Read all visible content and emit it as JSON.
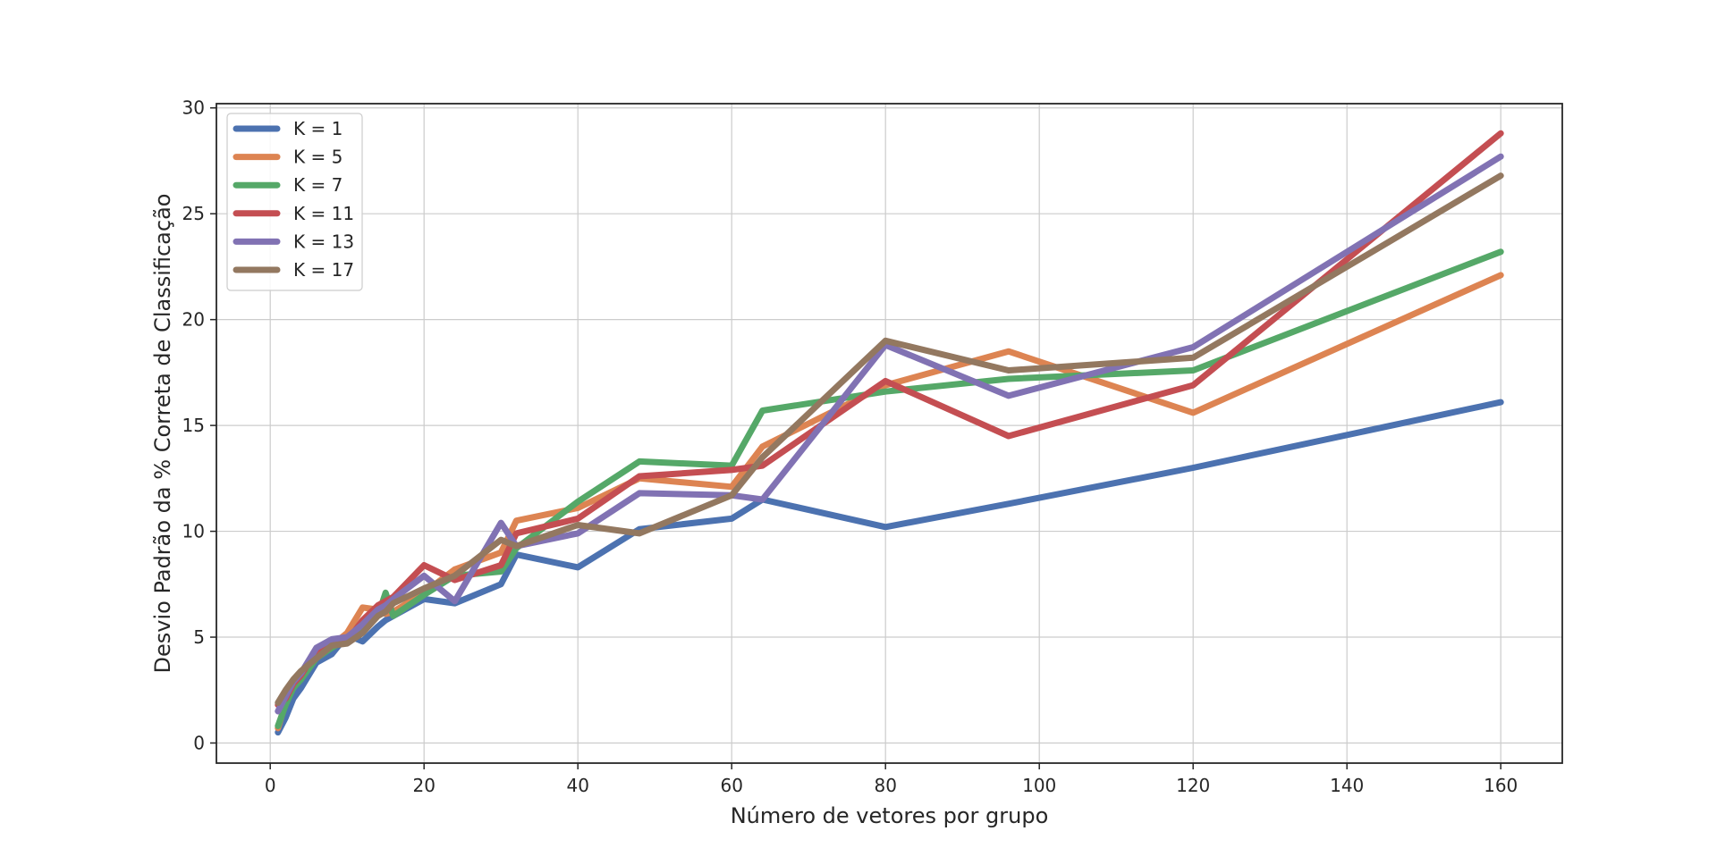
{
  "chart_data": {
    "type": "line",
    "title": "",
    "xlabel": "Número de vetores por grupo",
    "ylabel": "Desvio Padrão da % Correta de Classificação",
    "xlim": [
      -7,
      168
    ],
    "ylim": [
      -0.95,
      30.2
    ],
    "xticks": [
      0,
      20,
      40,
      60,
      80,
      100,
      120,
      140,
      160
    ],
    "yticks": [
      0,
      5,
      10,
      15,
      20,
      25,
      30
    ],
    "grid": true,
    "legend_position": "upper-left",
    "x": [
      1,
      2,
      3,
      4,
      6,
      8,
      10,
      12,
      14,
      15,
      16,
      20,
      24,
      30,
      32,
      40,
      48,
      60,
      64,
      80,
      96,
      120,
      160
    ],
    "series": [
      {
        "name": "K = 1",
        "color": "#4c72b0",
        "values": [
          0.5,
          1.2,
          2.1,
          2.6,
          3.8,
          4.2,
          5.1,
          4.8,
          5.5,
          5.8,
          6.0,
          6.8,
          6.6,
          7.5,
          8.9,
          8.3,
          10.1,
          10.6,
          11.5,
          10.2,
          11.3,
          13.0,
          16.1
        ]
      },
      {
        "name": "K = 5",
        "color": "#dd8452",
        "values": [
          0.7,
          1.9,
          2.8,
          3.2,
          4.2,
          4.6,
          5.2,
          6.4,
          6.3,
          6.1,
          6.2,
          7.1,
          8.2,
          9.0,
          10.5,
          11.1,
          12.5,
          12.1,
          14.0,
          16.9,
          18.5,
          15.6,
          22.1
        ]
      },
      {
        "name": "K = 7",
        "color": "#55a868",
        "values": [
          0.8,
          1.8,
          2.6,
          3.0,
          4.0,
          4.5,
          4.9,
          5.5,
          6.0,
          7.1,
          6.0,
          7.0,
          7.9,
          8.1,
          9.2,
          11.4,
          13.3,
          13.1,
          15.7,
          16.6,
          17.2,
          17.6,
          23.2
        ]
      },
      {
        "name": "K = 11",
        "color": "#c44e52",
        "values": [
          1.8,
          2.1,
          2.8,
          3.2,
          4.4,
          4.7,
          4.8,
          5.8,
          6.5,
          6.7,
          6.9,
          8.4,
          7.7,
          8.4,
          9.9,
          10.6,
          12.6,
          12.9,
          13.1,
          17.1,
          14.5,
          16.9,
          28.8
        ]
      },
      {
        "name": "K = 13",
        "color": "#8172b3",
        "values": [
          1.5,
          2.2,
          2.9,
          3.3,
          4.5,
          4.9,
          5.0,
          5.6,
          6.3,
          6.5,
          6.8,
          7.9,
          6.7,
          10.4,
          9.3,
          9.9,
          11.8,
          11.7,
          11.5,
          18.8,
          16.4,
          18.7,
          27.7
        ]
      },
      {
        "name": "K = 17",
        "color": "#937860",
        "values": [
          1.9,
          2.5,
          3.0,
          3.4,
          4.0,
          4.6,
          4.7,
          5.2,
          6.0,
          6.2,
          6.6,
          7.3,
          7.9,
          9.6,
          9.3,
          10.3,
          9.9,
          11.7,
          13.5,
          19.0,
          17.6,
          18.2,
          26.8
        ]
      }
    ]
  }
}
